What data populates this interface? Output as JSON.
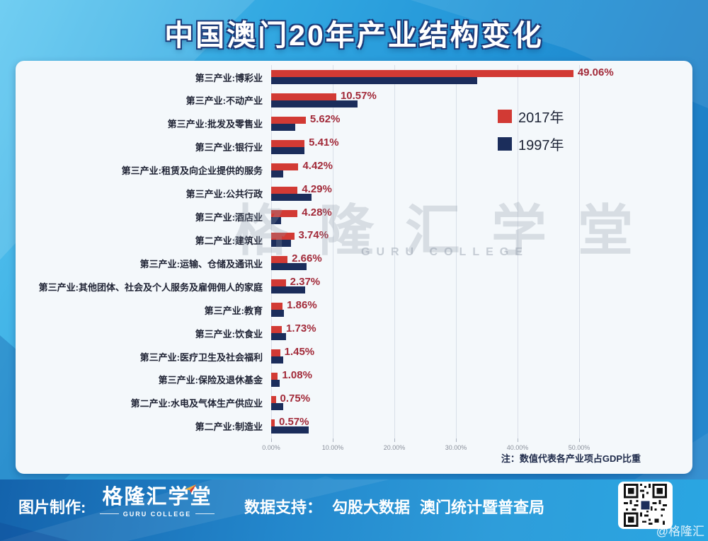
{
  "page": {
    "title": "中国澳门20年产业结构变化",
    "watermark_cn": "格隆汇学堂",
    "watermark_en": "GURU COLLEGE"
  },
  "chart_data": {
    "type": "bar",
    "orientation": "horizontal",
    "title": "中国澳门20年产业结构变化",
    "unit": "占GDP比重(%)",
    "categories": [
      "第三产业:博彩业",
      "第三产业:不动产业",
      "第三产业:批发及零售业",
      "第三产业:银行业",
      "第三产业:租赁及向企业提供的服务",
      "第三产业:公共行政",
      "第三产业:酒店业",
      "第二产业:建筑业",
      "第三产业:运输、仓储及通讯业",
      "第三产业:其他团体、社会及个人服务及雇佣佣人的家庭",
      "第三产业:教育",
      "第三产业:饮食业",
      "第三产业:医疗卫生及社会福利",
      "第三产业:保险及退休基金",
      "第二产业:水电及气体生产供应业",
      "第二产业:制造业"
    ],
    "series": [
      {
        "name": "2017年",
        "color": "#d23a34",
        "values": [
          49.06,
          10.57,
          5.62,
          5.41,
          4.42,
          4.29,
          4.28,
          3.74,
          2.66,
          2.37,
          1.86,
          1.73,
          1.45,
          1.08,
          0.75,
          0.57
        ],
        "labels": [
          "49.06%",
          "10.57%",
          "5.62%",
          "5.41%",
          "4.42%",
          "4.29%",
          "4.28%",
          "3.74%",
          "2.66%",
          "2.37%",
          "1.86%",
          "1.73%",
          "1.45%",
          "1.08%",
          "0.75%",
          "0.57%"
        ]
      },
      {
        "name": "1997年",
        "color": "#1b2d5b",
        "values": [
          33.4,
          14.0,
          3.9,
          5.4,
          2.0,
          6.6,
          1.6,
          3.2,
          5.7,
          5.5,
          2.1,
          2.4,
          2.0,
          1.4,
          1.9,
          6.1
        ],
        "estimated": true
      }
    ],
    "x_ticks": [
      "0.00%",
      "10.00%",
      "20.00%",
      "30.00%",
      "40.00%",
      "50.00%"
    ],
    "xlim": [
      0,
      55
    ],
    "grid": true,
    "legend_position": "inside-top-right",
    "note": "注：数值代表各产业项占GDP比重"
  },
  "footer": {
    "made_by_label": "图片制作:",
    "logo_cn": "格隆汇学堂",
    "logo_en": "GURU COLLEGE",
    "support_label": "数据支持：",
    "sources": [
      "勾股大数据",
      "澳门统计暨普查局"
    ],
    "handle": "@格隆汇"
  }
}
